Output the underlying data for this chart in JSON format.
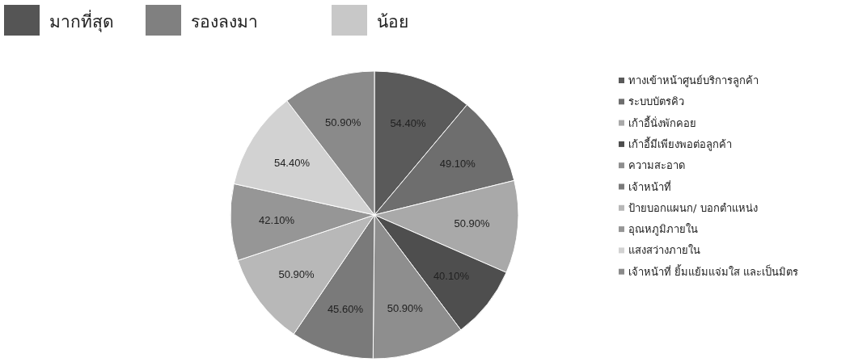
{
  "chart_data": {
    "type": "pie",
    "categories": [
      "ทางเข้าหน้าศูนย์บริการลูกค้า",
      "ระบบบัตรคิว",
      "เก้าอี้นั่งพักคอย",
      "เก้าอี้มีเพียงพอต่อลูกค้า",
      "ความสะอาด",
      "เจ้าหน้าที่",
      "ป้ายบอกแผนก/ บอกตำแหน่ง",
      "อุณหภูมิภายใน",
      "แสงสว่างภายใน",
      "เจ้าหน้าที่ ยิ้มแย้มแจ่มใส และเป็นมิตร"
    ],
    "values": [
      54.4,
      49.1,
      50.9,
      40.1,
      50.9,
      45.6,
      50.9,
      42.1,
      54.4,
      50.9
    ],
    "value_labels": [
      "54.40%",
      "49.10%",
      "50.90%",
      "40.10%",
      "50.90%",
      "45.60%",
      "50.90%",
      "42.10%",
      "54.40%",
      "50.90%"
    ],
    "colors": [
      "#5a5a5a",
      "#6e6e6e",
      "#a9a9a9",
      "#4e4e4e",
      "#8e8e8e",
      "#7a7a7a",
      "#b8b8b8",
      "#969696",
      "#d2d2d2",
      "#8a8a8a"
    ],
    "legend": "right",
    "annotations": [
      "มากที่สุด",
      "รองลงมา",
      "น้อย"
    ]
  }
}
